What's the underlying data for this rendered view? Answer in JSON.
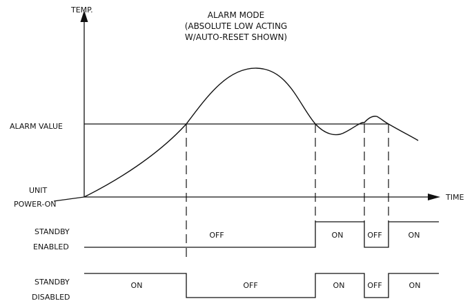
{
  "title": {
    "line1": "ALARM MODE",
    "line2": "(ABSOLUTE LOW ACTING",
    "line3": "W/AUTO-RESET SHOWN)"
  },
  "axes": {
    "y_label": "TEMP.",
    "x_label": "TIME",
    "alarm_value_label": "ALARM VALUE",
    "origin_label_line1": "UNIT",
    "origin_label_line2": "POWER-ON"
  },
  "standby_enabled": {
    "label_line1": "STANDBY",
    "label_line2": "ENABLED",
    "states": [
      "OFF",
      "ON",
      "OFF",
      "ON"
    ]
  },
  "standby_disabled": {
    "label_line1": "STANDBY",
    "label_line2": "DISABLED",
    "states": [
      "ON",
      "OFF",
      "ON",
      "OFF",
      "ON"
    ]
  }
}
